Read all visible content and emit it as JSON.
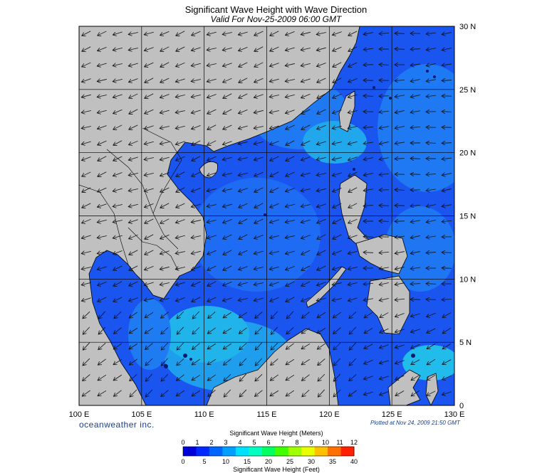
{
  "title": "Significant Wave Height with Wave Direction",
  "subtitle": "Valid For Nov-25-2009 06:00 GMT",
  "brand": "oceanweather inc.",
  "plotted": "Plotted at Nov 24, 2009 21:50 GMT",
  "map": {
    "lon_range": [
      100,
      130
    ],
    "lat_range": [
      0,
      30
    ],
    "lon_labels": [
      "100 E",
      "105 E",
      "110 E",
      "115 E",
      "120 E",
      "125 E",
      "130 E"
    ],
    "lat_labels": [
      "30 N",
      "25 N",
      "20 N",
      "15 N",
      "10 N",
      "5 N",
      "0"
    ],
    "grid": true,
    "colors": {
      "land": "#c0c0c0",
      "sea_deep": "#1a4df0",
      "sea_mid": "#1f7cf5",
      "sea_light": "#22b6ec"
    }
  },
  "legend": {
    "meters_title": "Significant Wave Height (Meters)",
    "feet_title": "Significant Wave Height (Feet)",
    "meters_ticks": [
      "0",
      "1",
      "2",
      "3",
      "4",
      "5",
      "6",
      "7",
      "8",
      "9",
      "10",
      "11",
      "12"
    ],
    "feet_ticks": [
      "0",
      "5",
      "10",
      "15",
      "20",
      "25",
      "30",
      "35",
      "40"
    ],
    "colors": [
      "#0000d8",
      "#0028ff",
      "#0064ff",
      "#00a0ff",
      "#00e0ff",
      "#00ffc0",
      "#00ff60",
      "#40ff00",
      "#a0ff00",
      "#e8ff00",
      "#ffc000",
      "#ff7000",
      "#ff2000"
    ]
  }
}
